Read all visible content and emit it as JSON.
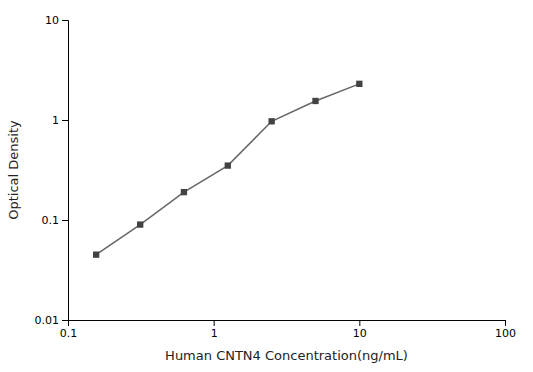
{
  "chart_data": {
    "type": "line",
    "x": [
      0.156,
      0.313,
      0.625,
      1.25,
      2.5,
      5.0,
      10.0
    ],
    "values": [
      0.045,
      0.09,
      0.19,
      0.35,
      0.97,
      1.55,
      2.3
    ],
    "xlabel": "Human CNTN4 Concentration(ng/mL)",
    "ylabel": "Optical Density",
    "xlim": [
      0.1,
      100
    ],
    "ylim": [
      0.01,
      10
    ],
    "xticks": [
      0.1,
      1,
      10,
      100
    ],
    "yticks": [
      0.01,
      0.1,
      1,
      10
    ],
    "log": true,
    "grid": false,
    "color": "#666666",
    "marker": "square"
  }
}
